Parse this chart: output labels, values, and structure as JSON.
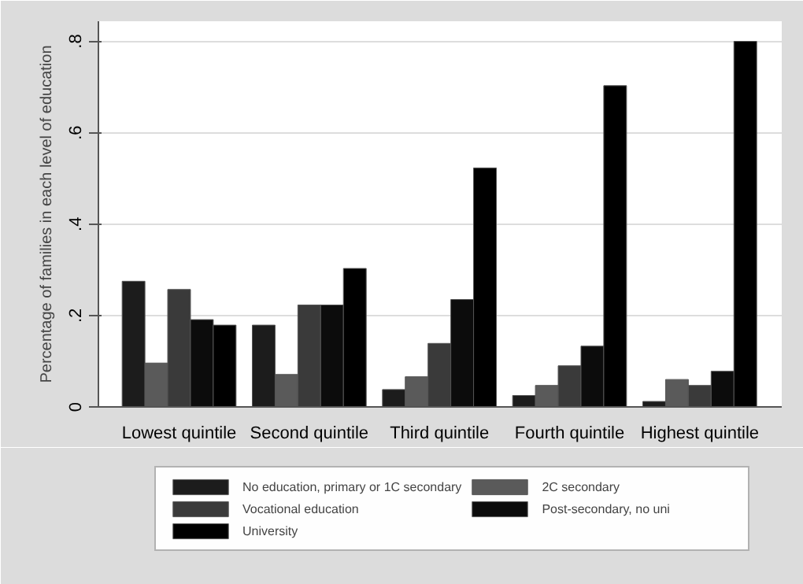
{
  "chart_data": {
    "type": "bar",
    "ylabel": "Percentage of families in each level of education",
    "categories": [
      "Lowest quintile",
      "Second quintile",
      "Third quintile",
      "Fourth quintile",
      "Highest quintile"
    ],
    "series": [
      {
        "name": "No education, primary or 1C secondary",
        "color": "#1c1c1c",
        "values": [
          0.275,
          0.179,
          0.038,
          0.025,
          0.012
        ]
      },
      {
        "name": "2C secondary",
        "color": "#5a5a5a",
        "values": [
          0.096,
          0.071,
          0.066,
          0.047,
          0.06
        ]
      },
      {
        "name": "Vocational education",
        "color": "#3a3a3a",
        "values": [
          0.257,
          0.223,
          0.139,
          0.09,
          0.047
        ]
      },
      {
        "name": "Post-secondary, no uni",
        "color": "#0c0c0c",
        "values": [
          0.191,
          0.223,
          0.235,
          0.133,
          0.078
        ]
      },
      {
        "name": "University",
        "color": "#000000",
        "values": [
          0.179,
          0.303,
          0.523,
          0.703,
          0.8
        ]
      }
    ],
    "ylim": [
      0,
      0.844
    ],
    "yticks": [
      {
        "value": 0,
        "label": "0"
      },
      {
        "value": 0.2,
        "label": ".2"
      },
      {
        "value": 0.4,
        "label": ".4"
      },
      {
        "value": 0.6,
        "label": ".6"
      },
      {
        "value": 0.8,
        "label": ".8"
      }
    ],
    "grid": "y",
    "legend": "bottom"
  }
}
